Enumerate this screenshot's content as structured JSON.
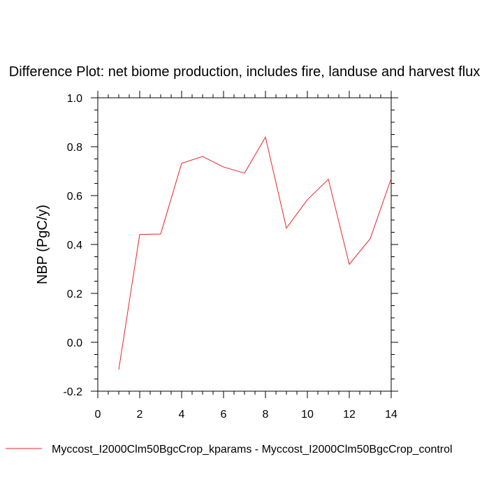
{
  "chart_data": {
    "type": "line",
    "title": "Difference Plot: net biome production, includes fire, landuse and harvest flux",
    "xlabel": "",
    "ylabel": "NBP  (PgC/y)",
    "xlim": [
      0,
      14
    ],
    "ylim": [
      -0.2,
      1.0
    ],
    "x_ticks": [
      "0",
      "2",
      "4",
      "6",
      "8",
      "10",
      "12",
      "14"
    ],
    "y_ticks": [
      "-0.2",
      "0.0",
      "0.2",
      "0.4",
      "0.6",
      "0.8",
      "1.0"
    ],
    "x_tick_values": [
      0,
      2,
      4,
      6,
      8,
      10,
      12,
      14
    ],
    "y_tick_values": [
      -0.2,
      0.0,
      0.2,
      0.4,
      0.6,
      0.8,
      1.0
    ],
    "grid": false,
    "legend_position": "bottom",
    "series": [
      {
        "name": "Myccost_I2000Clm50BgcCrop_kparams - Myccost_I2000Clm50BgcCrop_control",
        "color": "#e8242a",
        "x": [
          1,
          2,
          3,
          4,
          5,
          6,
          7,
          8,
          9,
          10,
          11,
          12,
          13,
          14
        ],
        "y": [
          -0.112,
          0.441,
          0.443,
          0.732,
          0.76,
          0.717,
          0.692,
          0.839,
          0.467,
          0.583,
          0.667,
          0.319,
          0.424,
          0.67
        ]
      }
    ]
  }
}
